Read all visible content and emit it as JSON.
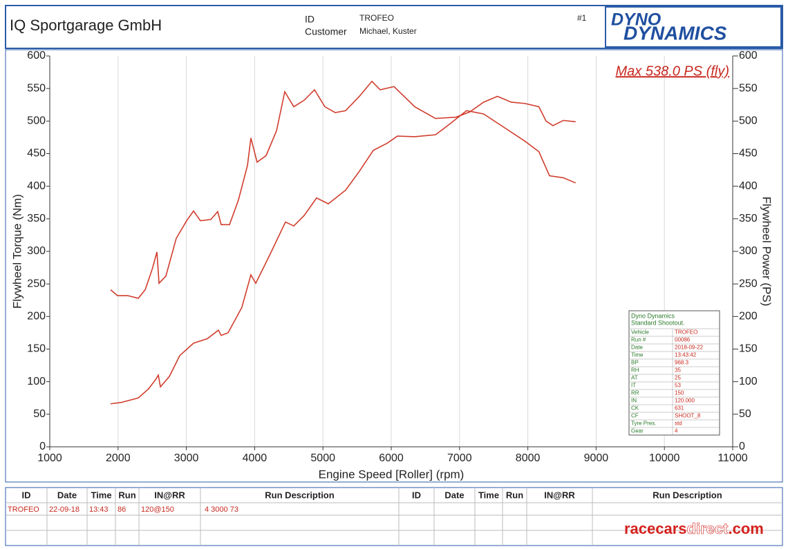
{
  "header": {
    "company": "IQ Sportgarage GmbH",
    "id_label": "ID",
    "id_value": "TROFEO",
    "customer_label": "Customer",
    "customer_value": "Michael, Kuster",
    "run_number": "#1",
    "logo_top": "DYNO",
    "logo_bottom": "DYNAMICS"
  },
  "chart_data": {
    "type": "line",
    "annotation": "Max 538.0 PS (fly)",
    "xlabel": "Engine Speed [Roller] (rpm)",
    "ylabel": "Flywheel Torque (Nm)",
    "y2label": "Flywheel Power (PS)",
    "xlim": [
      1000,
      11000
    ],
    "xticks": [
      1000,
      2000,
      3000,
      4000,
      5000,
      6000,
      7000,
      8000,
      9000,
      10000,
      11000
    ],
    "ylim": [
      0,
      600
    ],
    "yticks": [
      0,
      50,
      100,
      150,
      200,
      250,
      300,
      350,
      400,
      450,
      500,
      550,
      600
    ],
    "y2lim": [
      0,
      600
    ],
    "y2ticks": [
      0,
      50,
      100,
      150,
      200,
      250,
      300,
      350,
      400,
      450,
      500,
      550,
      600
    ],
    "grid": "x",
    "series": [
      {
        "color": "#d03c2c",
        "axis": "y",
        "x": [
          1891,
          1992,
          2144,
          2296,
          2397,
          2498,
          2569,
          2600,
          2700,
          2852,
          3004,
          3105,
          3206,
          3358,
          3459,
          3510,
          3632,
          3763,
          3895,
          3945,
          4036,
          4168,
          4320,
          4441,
          4573,
          4725,
          4877,
          5028,
          5180,
          5332,
          5534,
          5717,
          5838,
          6040,
          6344,
          6648,
          6947,
          7150,
          7352,
          7555,
          7757,
          7960,
          8162,
          8267,
          8368,
          8520,
          8700
        ],
        "values": [
          241,
          232,
          232,
          228,
          241,
          272,
          299,
          251,
          262,
          320,
          347,
          362,
          347,
          349,
          361,
          341,
          341,
          379,
          432,
          474,
          437,
          447,
          485,
          545,
          522,
          532,
          548,
          522,
          513,
          516,
          538,
          561,
          548,
          553,
          522,
          504,
          506,
          514,
          529,
          538,
          529,
          527,
          522,
          500,
          493,
          501,
          499
        ]
      },
      {
        "color": "#d03c2c",
        "axis": "y2",
        "x": [
          1891,
          2043,
          2296,
          2447,
          2549,
          2590,
          2620,
          2751,
          2903,
          3105,
          3308,
          3470,
          3510,
          3611,
          3813,
          3945,
          4016,
          4219,
          4451,
          4573,
          4725,
          4907,
          5079,
          5332,
          5534,
          5737,
          5939,
          6091,
          6344,
          6648,
          6851,
          7103,
          7352,
          7656,
          7960,
          8162,
          8318,
          8520,
          8700
        ],
        "values": [
          66,
          68,
          75,
          89,
          103,
          110,
          92,
          108,
          140,
          159,
          166,
          179,
          171,
          175,
          214,
          264,
          251,
          294,
          345,
          339,
          355,
          382,
          373,
          394,
          423,
          455,
          466,
          477,
          476,
          479,
          495,
          516,
          511,
          490,
          469,
          453,
          416,
          413,
          405
        ]
      }
    ]
  },
  "shootout": {
    "title": "Dyno Dynamics",
    "subtitle": "Standard Shootout.",
    "rows": [
      [
        "Vehicle",
        "TROFEO"
      ],
      [
        "Run #",
        "00086"
      ],
      [
        "Date",
        "2018-09-22"
      ],
      [
        "Time",
        "13:43:42"
      ],
      [
        "BP",
        "968.3"
      ],
      [
        "RH",
        "35"
      ],
      [
        "AT",
        "25"
      ],
      [
        "IT",
        "53"
      ],
      [
        "RR",
        "150"
      ],
      [
        "IN",
        "120.000"
      ],
      [
        "CK",
        "631"
      ],
      [
        "CF",
        "SHOOT_8"
      ],
      [
        "Tyre Pres.",
        "std"
      ],
      [
        "Gear",
        "4"
      ]
    ]
  },
  "run_table": {
    "headers": [
      "ID",
      "Date",
      "Time",
      "Run",
      "IN@RR",
      "Run Description",
      "ID",
      "Date",
      "Time",
      "Run",
      "IN@RR",
      "Run Description"
    ],
    "rows": [
      [
        "TROFEO",
        "22-09-18",
        "13:43",
        "86",
        "120@150",
        "4 3000 73"
      ]
    ]
  },
  "watermark": {
    "part1": "racecars",
    "part2": "direct",
    "part3": ".com"
  }
}
